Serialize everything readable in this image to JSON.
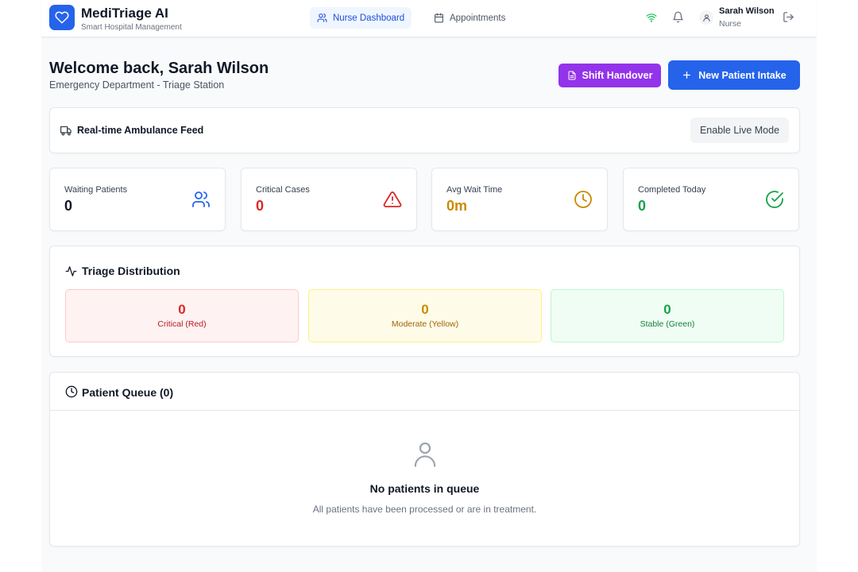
{
  "app": {
    "title": "MediTriage AI",
    "subtitle": "Smart Hospital Management"
  },
  "nav": {
    "tabs": [
      {
        "label": "Nurse Dashboard",
        "icon": "users-icon",
        "active": true
      },
      {
        "label": "Appointments",
        "icon": "calendar-icon",
        "active": false
      }
    ]
  },
  "user": {
    "name": "Sarah Wilson",
    "role": "Nurse"
  },
  "welcome": {
    "title": "Welcome back, Sarah Wilson",
    "subtitle": "Emergency Department - Triage Station"
  },
  "actions": {
    "handover_label": "Shift Handover",
    "intake_label": "New Patient Intake"
  },
  "ambulance_feed": {
    "title": "Real-time Ambulance Feed",
    "button_label": "Enable Live Mode"
  },
  "stats": [
    {
      "label": "Waiting Patients",
      "value": "0",
      "color": "#111827",
      "icon": "users-icon"
    },
    {
      "label": "Critical Cases",
      "value": "0",
      "color": "#dc2626",
      "icon": "alert-triangle-icon"
    },
    {
      "label": "Avg Wait Time",
      "value": "0m",
      "color": "#ca8a04",
      "icon": "clock-icon"
    },
    {
      "label": "Completed Today",
      "value": "0",
      "color": "#16a34a",
      "icon": "check-circle-icon"
    }
  ],
  "triage": {
    "title": "Triage Distribution",
    "boxes": [
      {
        "count": "0",
        "label": "Critical (Red)",
        "color": "#dc2626"
      },
      {
        "count": "0",
        "label": "Moderate (Yellow)",
        "color": "#ca8a04"
      },
      {
        "count": "0",
        "label": "Stable (Green)",
        "color": "#16a34a"
      }
    ]
  },
  "queue": {
    "title": "Patient Queue (0)",
    "empty_title": "No patients in queue",
    "empty_subtitle": "All patients have been processed or are in treatment."
  }
}
